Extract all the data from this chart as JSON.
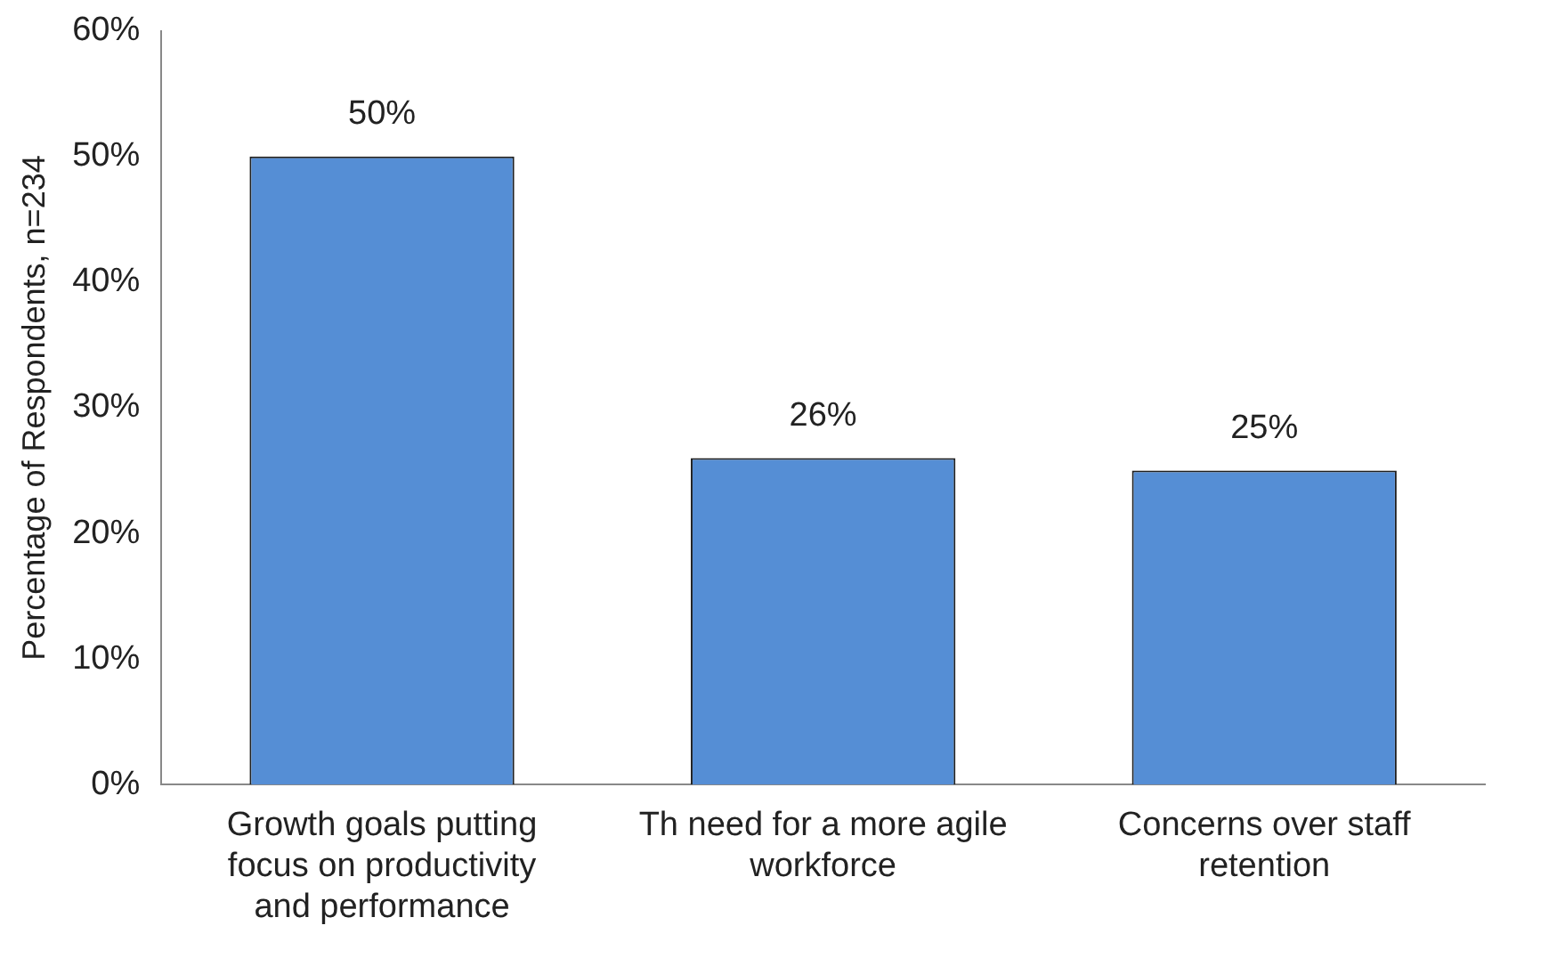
{
  "chart_data": {
    "type": "bar",
    "ylabel": "Percentage of Respondents, n=234",
    "categories": [
      "Growth goals putting focus on productivity and performance",
      "Th need for a more agile workforce",
      "Concerns over staff retention"
    ],
    "values": [
      50,
      26,
      25
    ],
    "color": "#558ed5",
    "value_labels": [
      "50%",
      "26%",
      "25%"
    ],
    "ylim": [
      0,
      60
    ],
    "yticks": [
      {
        "value": 0,
        "label": "0%"
      },
      {
        "value": 10,
        "label": "10%"
      },
      {
        "value": 20,
        "label": "20%"
      },
      {
        "value": 30,
        "label": "30%"
      },
      {
        "value": 40,
        "label": "40%"
      },
      {
        "value": 50,
        "label": "50%"
      },
      {
        "value": 60,
        "label": "60%"
      }
    ],
    "grid": false,
    "legend": false
  }
}
